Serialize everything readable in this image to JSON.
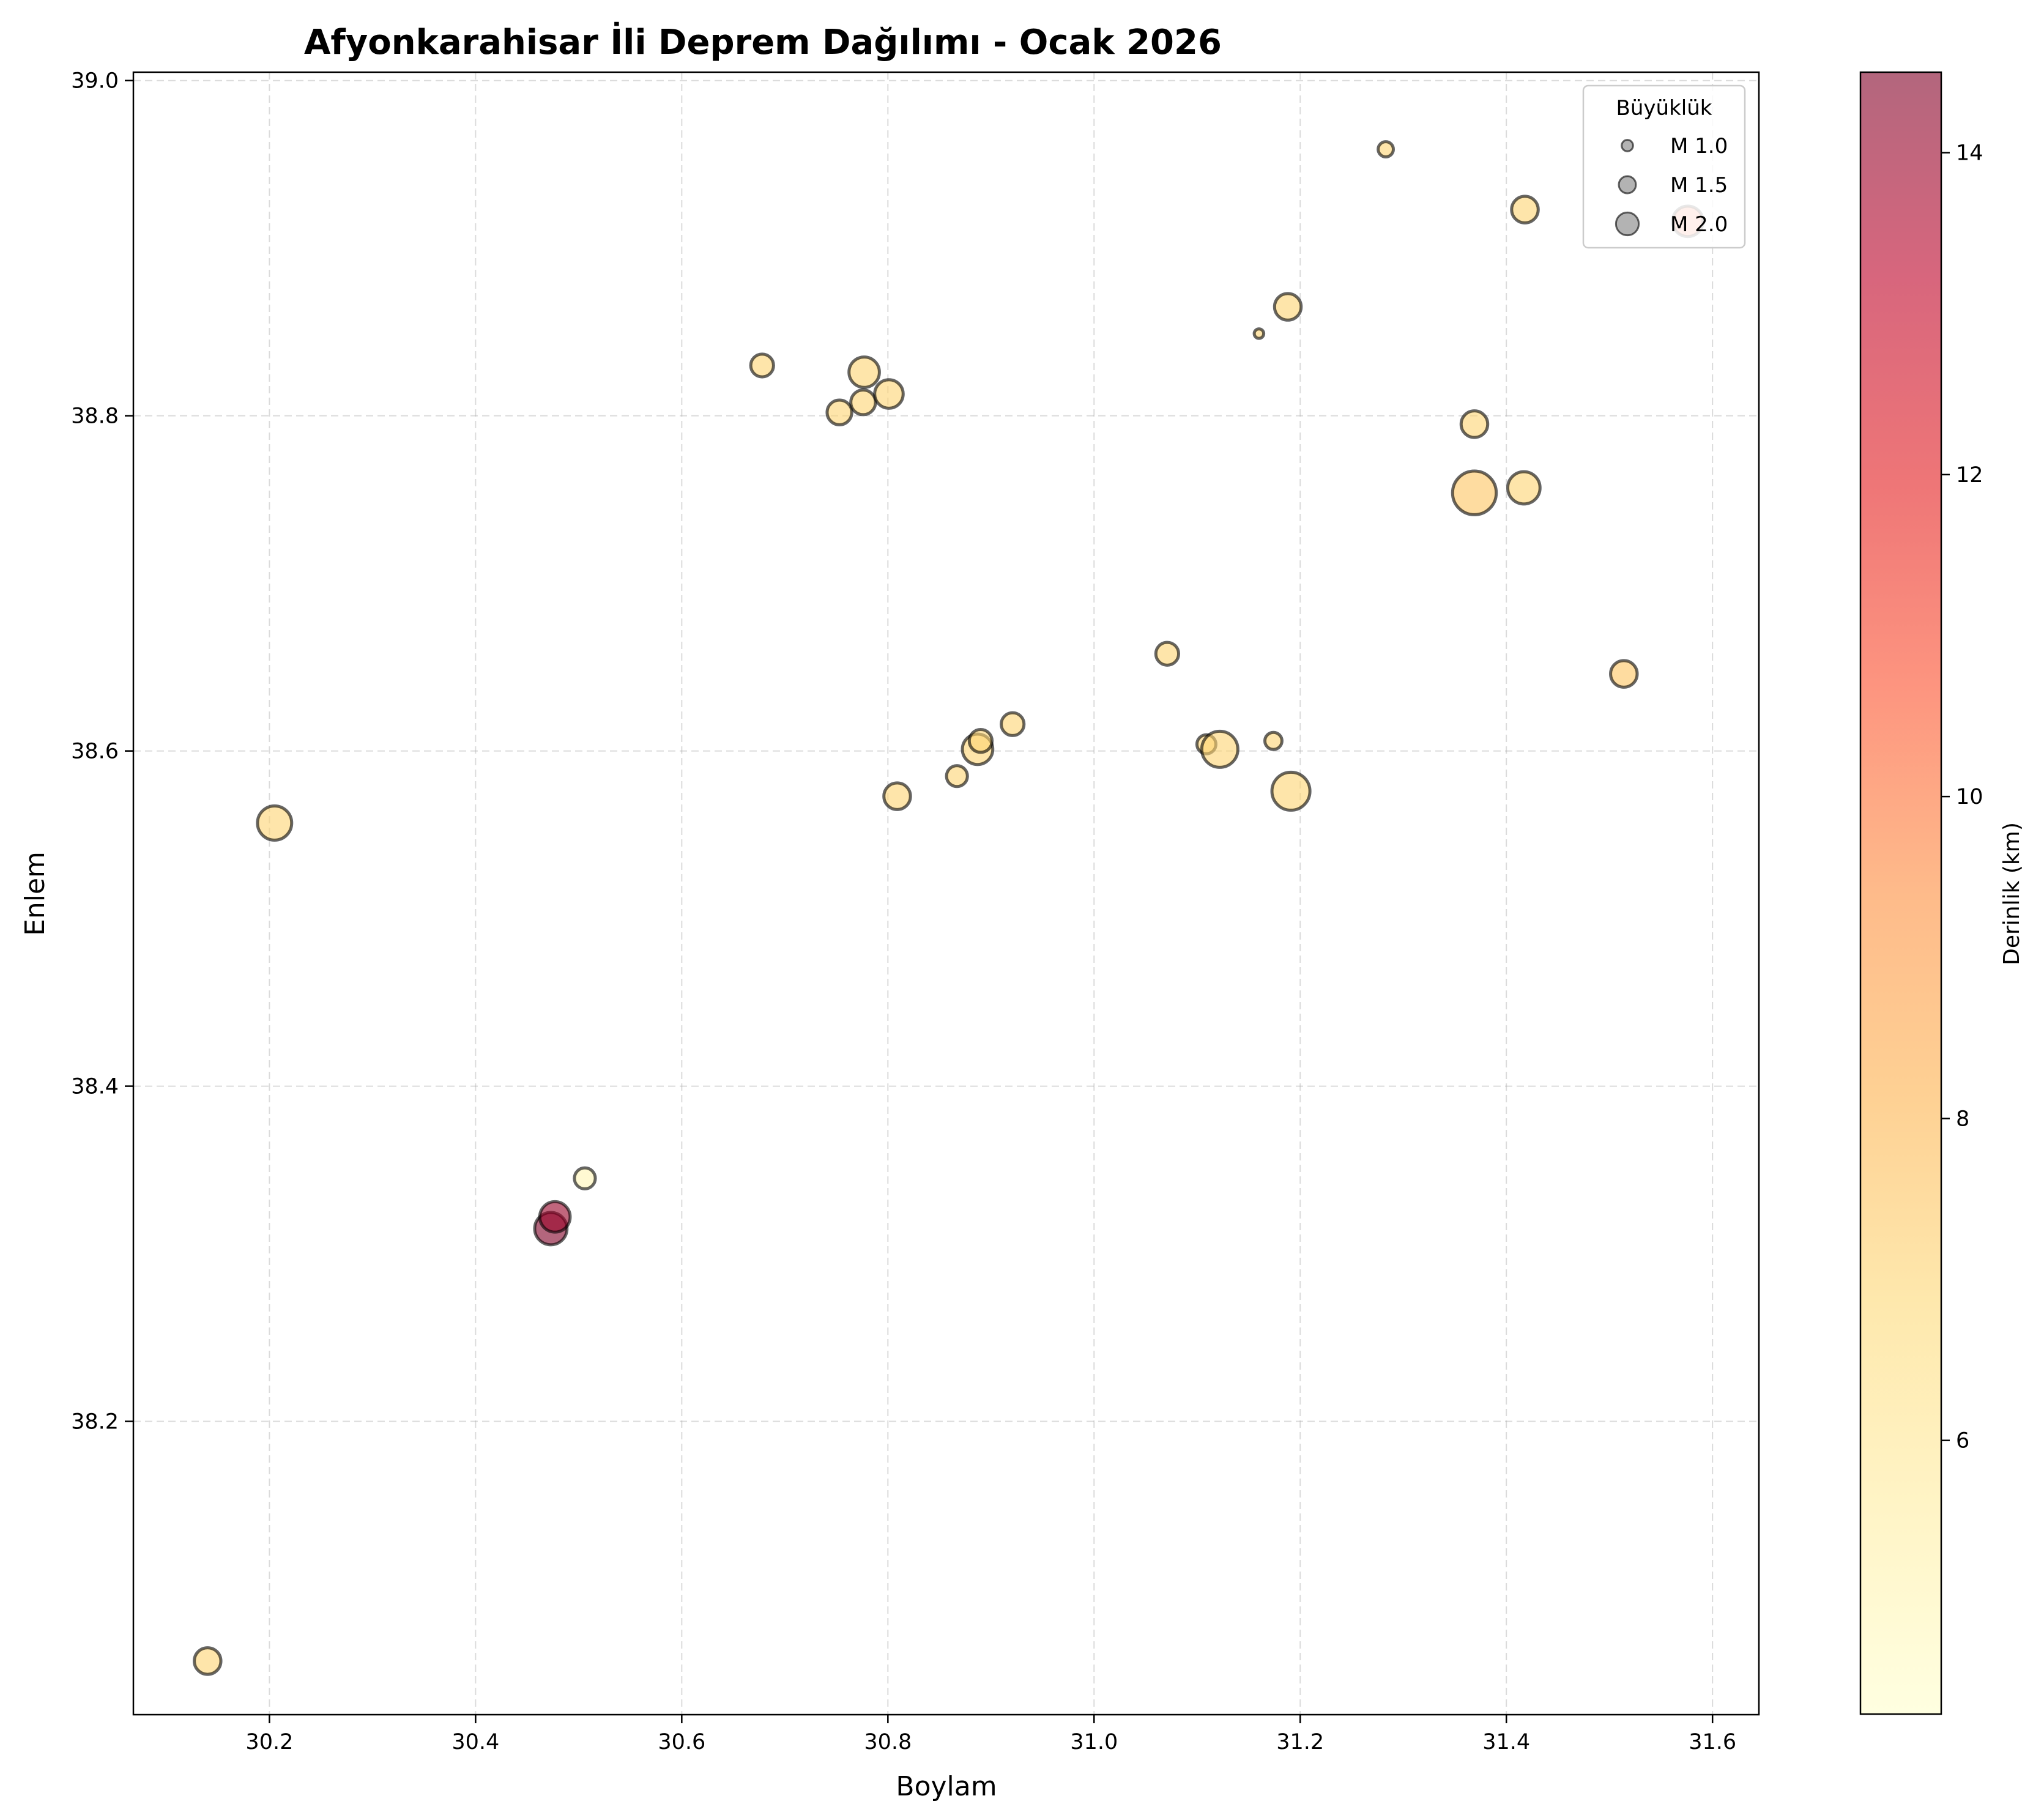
{
  "chart_data": {
    "type": "scatter",
    "title": "Afyonkarahisar İli Deprem Dağılımı - Ocak 2026",
    "xlabel": "Boylam",
    "ylabel": "Enlem",
    "xlim": [
      30.068,
      31.645
    ],
    "ylim": [
      38.025,
      39.005
    ],
    "xticks": [
      "30.2",
      "30.4",
      "30.6",
      "30.8",
      "31.0",
      "31.2",
      "31.4",
      "31.6"
    ],
    "yticks": [
      "38.2",
      "38.4",
      "38.6",
      "38.8",
      "39.0"
    ],
    "grid": true,
    "size_encoding": "magnitude",
    "color_encoding": "depth_km",
    "colormap": "YlOrRd",
    "colorbar": {
      "label": "Derinlik (km)",
      "range": [
        4.3,
        14.5
      ],
      "ticks": [
        "6",
        "8",
        "10",
        "12",
        "14"
      ]
    },
    "legend": {
      "title": "Büyüklük",
      "position": "top-right",
      "entries": [
        {
          "label": "M 1.0",
          "magnitude": 1.0
        },
        {
          "label": "M 1.5",
          "magnitude": 1.5
        },
        {
          "label": "M 2.0",
          "magnitude": 2.0
        }
      ]
    },
    "points": [
      {
        "lon": 30.14,
        "lat": 38.057,
        "mag": 1.4,
        "depth": 7.0
      },
      {
        "lon": 30.205,
        "lat": 38.557,
        "mag": 1.8,
        "depth": 7.0
      },
      {
        "lon": 30.473,
        "lat": 38.315,
        "mag": 1.7,
        "depth": 14.5
      },
      {
        "lon": 30.477,
        "lat": 38.322,
        "mag": 1.6,
        "depth": 14.0
      },
      {
        "lon": 30.506,
        "lat": 38.345,
        "mag": 1.1,
        "depth": 5.0
      },
      {
        "lon": 30.678,
        "lat": 38.83,
        "mag": 1.2,
        "depth": 7.0
      },
      {
        "lon": 30.753,
        "lat": 38.802,
        "mag": 1.3,
        "depth": 7.0
      },
      {
        "lon": 30.776,
        "lat": 38.808,
        "mag": 1.3,
        "depth": 7.0
      },
      {
        "lon": 30.777,
        "lat": 38.826,
        "mag": 1.6,
        "depth": 7.0
      },
      {
        "lon": 30.801,
        "lat": 38.813,
        "mag": 1.5,
        "depth": 7.0
      },
      {
        "lon": 30.809,
        "lat": 38.573,
        "mag": 1.4,
        "depth": 7.0
      },
      {
        "lon": 30.867,
        "lat": 38.585,
        "mag": 1.1,
        "depth": 7.0
      },
      {
        "lon": 30.887,
        "lat": 38.601,
        "mag": 1.6,
        "depth": 7.0
      },
      {
        "lon": 30.89,
        "lat": 38.606,
        "mag": 1.2,
        "depth": 7.0
      },
      {
        "lon": 30.921,
        "lat": 38.616,
        "mag": 1.2,
        "depth": 7.0
      },
      {
        "lon": 31.071,
        "lat": 38.658,
        "mag": 1.2,
        "depth": 7.0
      },
      {
        "lon": 31.109,
        "lat": 38.604,
        "mag": 1.0,
        "depth": 7.0
      },
      {
        "lon": 31.122,
        "lat": 38.601,
        "mag": 1.9,
        "depth": 7.0
      },
      {
        "lon": 31.16,
        "lat": 38.849,
        "mag": 0.5,
        "depth": 7.0
      },
      {
        "lon": 31.174,
        "lat": 38.606,
        "mag": 0.9,
        "depth": 7.0
      },
      {
        "lon": 31.188,
        "lat": 38.865,
        "mag": 1.4,
        "depth": 7.0
      },
      {
        "lon": 31.191,
        "lat": 38.576,
        "mag": 2.0,
        "depth": 7.0
      },
      {
        "lon": 31.283,
        "lat": 38.959,
        "mag": 0.8,
        "depth": 7.0
      },
      {
        "lon": 31.369,
        "lat": 38.795,
        "mag": 1.4,
        "depth": 7.0
      },
      {
        "lon": 31.369,
        "lat": 38.754,
        "mag": 2.3,
        "depth": 7.5
      },
      {
        "lon": 31.417,
        "lat": 38.757,
        "mag": 1.7,
        "depth": 7.0
      },
      {
        "lon": 31.418,
        "lat": 38.923,
        "mag": 1.4,
        "depth": 7.0
      },
      {
        "lon": 31.514,
        "lat": 38.646,
        "mag": 1.4,
        "depth": 7.5
      },
      {
        "lon": 31.576,
        "lat": 38.916,
        "mag": 1.6,
        "depth": 10.5
      }
    ]
  }
}
